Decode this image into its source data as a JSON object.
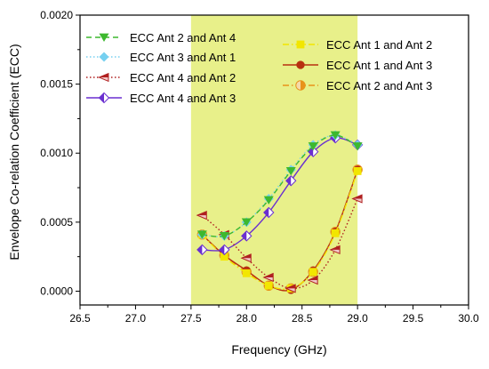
{
  "chart_data": {
    "type": "line",
    "title": "",
    "xlabel": "Frequency (GHz)",
    "ylabel": "Envelope Co-relation Coefficient (ECC)",
    "xlim": [
      26.5,
      30.0
    ],
    "ylim": [
      -0.0001,
      0.002
    ],
    "x_ticks": [
      "26.5",
      "27.0",
      "27.5",
      "28.0",
      "28.5",
      "29.0",
      "29.5",
      "30.0"
    ],
    "y_ticks": [
      "0.0000",
      "0.0005",
      "0.0010",
      "0.0015",
      "0.0020"
    ],
    "x_tick_values": [
      26.5,
      27.0,
      27.5,
      28.0,
      28.5,
      29.0,
      29.5,
      30.0
    ],
    "y_tick_values": [
      0.0,
      0.0005,
      0.001,
      0.0015,
      0.002
    ],
    "highlight_band": {
      "x_range": [
        27.5,
        29.0
      ],
      "color": "#e8f08a"
    },
    "grid": false,
    "legend_position": "top",
    "x": [
      27.6,
      27.8,
      28.0,
      28.2,
      28.4,
      28.6,
      28.8,
      29.0
    ],
    "series": [
      {
        "name": "ECC Ant 2 and Ant 4",
        "color": "#3db82e",
        "line": "dashed",
        "marker": "triangle-down",
        "values": [
          0.00041,
          0.0004,
          0.0005,
          0.00066,
          0.00087,
          0.00105,
          0.00113,
          0.00105
        ]
      },
      {
        "name": "ECC Ant 3 and Ant 1",
        "color": "#76d0f0",
        "line": "dotted",
        "marker": "diamond",
        "values": [
          0.00041,
          0.0004,
          0.0005,
          0.00067,
          0.00088,
          0.00106,
          0.00113,
          0.00106
        ]
      },
      {
        "name": "ECC Ant 4 and Ant 2",
        "color": "#b02020",
        "line": "dotted",
        "marker": "triangle-left",
        "values": [
          0.00055,
          0.00041,
          0.00024,
          0.0001,
          2e-05,
          8e-05,
          0.0003,
          0.00067
        ]
      },
      {
        "name": "ECC Ant 4 and Ant 3",
        "color": "#6a2fd0",
        "line": "solid",
        "marker": "half-diamond",
        "values": [
          0.0003,
          0.0003,
          0.0004,
          0.00057,
          0.0008,
          0.00101,
          0.00111,
          0.00106
        ]
      },
      {
        "name": "ECC Ant 1 and Ant 2",
        "color": "#f2e600",
        "line": "dashdot",
        "marker": "square",
        "values": [
          0.00041,
          0.00025,
          0.00013,
          4e-05,
          2e-05,
          0.00014,
          0.00042,
          0.00087
        ]
      },
      {
        "name": "ECC Ant 1 and Ant 3",
        "color": "#b83010",
        "line": "solid",
        "marker": "circle",
        "values": [
          0.00041,
          0.00026,
          0.00015,
          4e-05,
          1e-05,
          0.00015,
          0.00043,
          0.00088
        ]
      },
      {
        "name": "ECC Ant 2 and Ant 3",
        "color": "#e8921a",
        "line": "dashdot",
        "marker": "half-circle",
        "values": [
          0.00041,
          0.00026,
          0.00014,
          4e-05,
          2e-05,
          0.00014,
          0.00043,
          0.00088
        ]
      }
    ]
  }
}
